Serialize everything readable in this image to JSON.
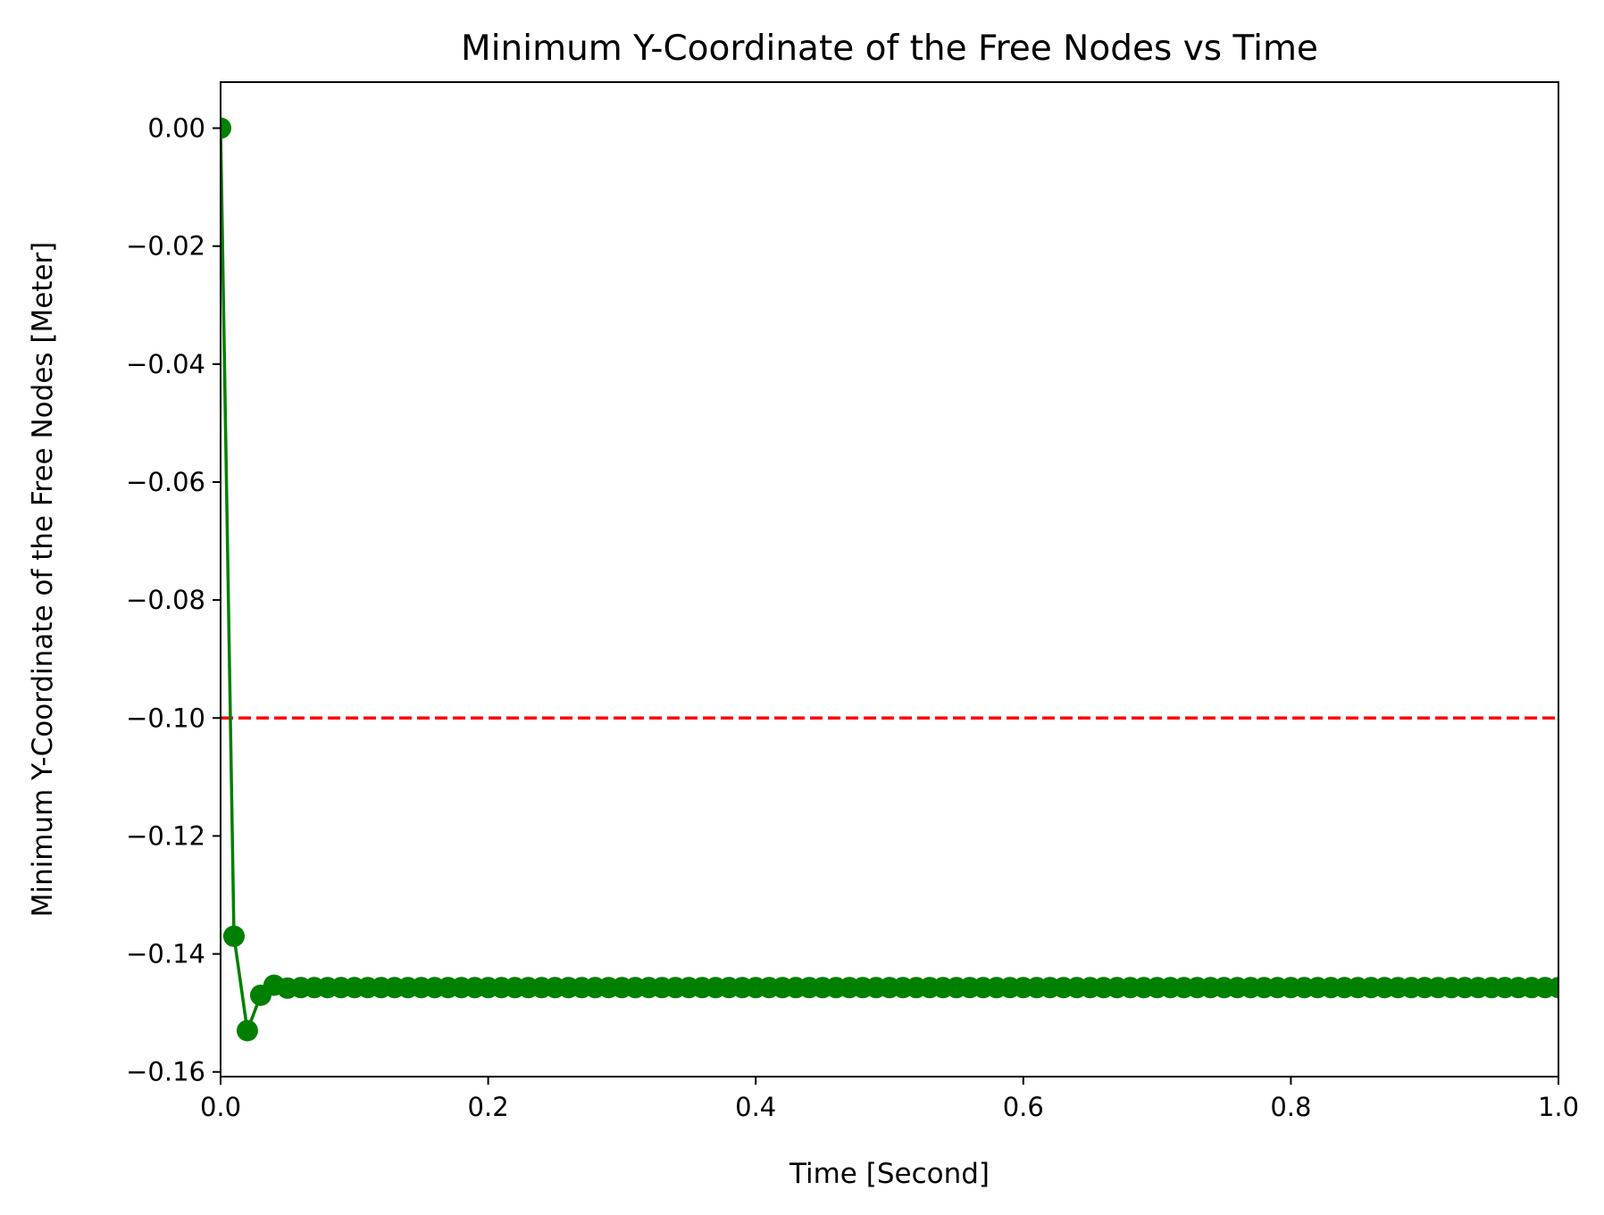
{
  "chart_data": {
    "type": "line",
    "title": "Minimum Y-Coordinate of the Free Nodes vs Time",
    "xlabel": "Time [Second]",
    "ylabel": "Minimum Y-Coordinate of the Free Nodes [Meter]",
    "xlim": [
      0.0,
      1.0
    ],
    "ylim": [
      -0.1608,
      0.0078
    ],
    "xticks": [
      0.0,
      0.2,
      0.4,
      0.6,
      0.8,
      1.0
    ],
    "xtick_labels": [
      "0.0",
      "0.2",
      "0.4",
      "0.6",
      "0.8",
      "1.0"
    ],
    "yticks": [
      0.0,
      -0.02,
      -0.04,
      -0.06,
      -0.08,
      -0.1,
      -0.12,
      -0.14,
      -0.16
    ],
    "ytick_labels": [
      "0.00",
      "−0.02",
      "−0.04",
      "−0.06",
      "−0.08",
      "−0.10",
      "−0.12",
      "−0.14",
      "−0.16"
    ],
    "grid": false,
    "series": [
      {
        "color": "#008000",
        "marker": "circle",
        "x": [
          0.0,
          0.01,
          0.02,
          0.03,
          0.04,
          0.05,
          0.06,
          0.07,
          0.08,
          0.09,
          0.1,
          0.11,
          0.12,
          0.13,
          0.14,
          0.15,
          0.16,
          0.17,
          0.18,
          0.19,
          0.2,
          0.21,
          0.22,
          0.23,
          0.24,
          0.25,
          0.26,
          0.27,
          0.28,
          0.29,
          0.3,
          0.31,
          0.32,
          0.33,
          0.34,
          0.35,
          0.36,
          0.37,
          0.38,
          0.39,
          0.4,
          0.41,
          0.42,
          0.43,
          0.44,
          0.45,
          0.46,
          0.47,
          0.48,
          0.49,
          0.5,
          0.51,
          0.52,
          0.53,
          0.54,
          0.55,
          0.56,
          0.57,
          0.58,
          0.59,
          0.6,
          0.61,
          0.62,
          0.63,
          0.64,
          0.65,
          0.66,
          0.67,
          0.68,
          0.69,
          0.7,
          0.71,
          0.72,
          0.73,
          0.74,
          0.75,
          0.76,
          0.77,
          0.78,
          0.79,
          0.8,
          0.81,
          0.82,
          0.83,
          0.84,
          0.85,
          0.86,
          0.87,
          0.88,
          0.89,
          0.9,
          0.91,
          0.92,
          0.93,
          0.94,
          0.95,
          0.96,
          0.97,
          0.98,
          0.99,
          1.0
        ],
        "y": [
          0.0,
          -0.137,
          -0.153,
          -0.147,
          -0.1453,
          -0.1458,
          -0.1457,
          -0.1457,
          -0.1457,
          -0.1457,
          -0.1457,
          -0.1457,
          -0.1457,
          -0.1457,
          -0.1457,
          -0.1457,
          -0.1457,
          -0.1457,
          -0.1457,
          -0.1457,
          -0.1457,
          -0.1457,
          -0.1457,
          -0.1457,
          -0.1457,
          -0.1457,
          -0.1457,
          -0.1457,
          -0.1457,
          -0.1457,
          -0.1457,
          -0.1457,
          -0.1457,
          -0.1457,
          -0.1457,
          -0.1457,
          -0.1457,
          -0.1457,
          -0.1457,
          -0.1457,
          -0.1457,
          -0.1457,
          -0.1457,
          -0.1457,
          -0.1457,
          -0.1457,
          -0.1457,
          -0.1457,
          -0.1457,
          -0.1457,
          -0.1457,
          -0.1457,
          -0.1457,
          -0.1457,
          -0.1457,
          -0.1457,
          -0.1457,
          -0.1457,
          -0.1457,
          -0.1457,
          -0.1457,
          -0.1457,
          -0.1457,
          -0.1457,
          -0.1457,
          -0.1457,
          -0.1457,
          -0.1457,
          -0.1457,
          -0.1457,
          -0.1457,
          -0.1457,
          -0.1457,
          -0.1457,
          -0.1457,
          -0.1457,
          -0.1457,
          -0.1457,
          -0.1457,
          -0.1457,
          -0.1457,
          -0.1457,
          -0.1457,
          -0.1457,
          -0.1457,
          -0.1457,
          -0.1457,
          -0.1457,
          -0.1457,
          -0.1457,
          -0.1457,
          -0.1457,
          -0.1457,
          -0.1457,
          -0.1457,
          -0.1457,
          -0.1457,
          -0.1457,
          -0.1457,
          -0.1457,
          -0.1457
        ]
      }
    ],
    "reference_line": {
      "y": -0.1,
      "color": "#ff0000",
      "style": "dashed"
    }
  }
}
